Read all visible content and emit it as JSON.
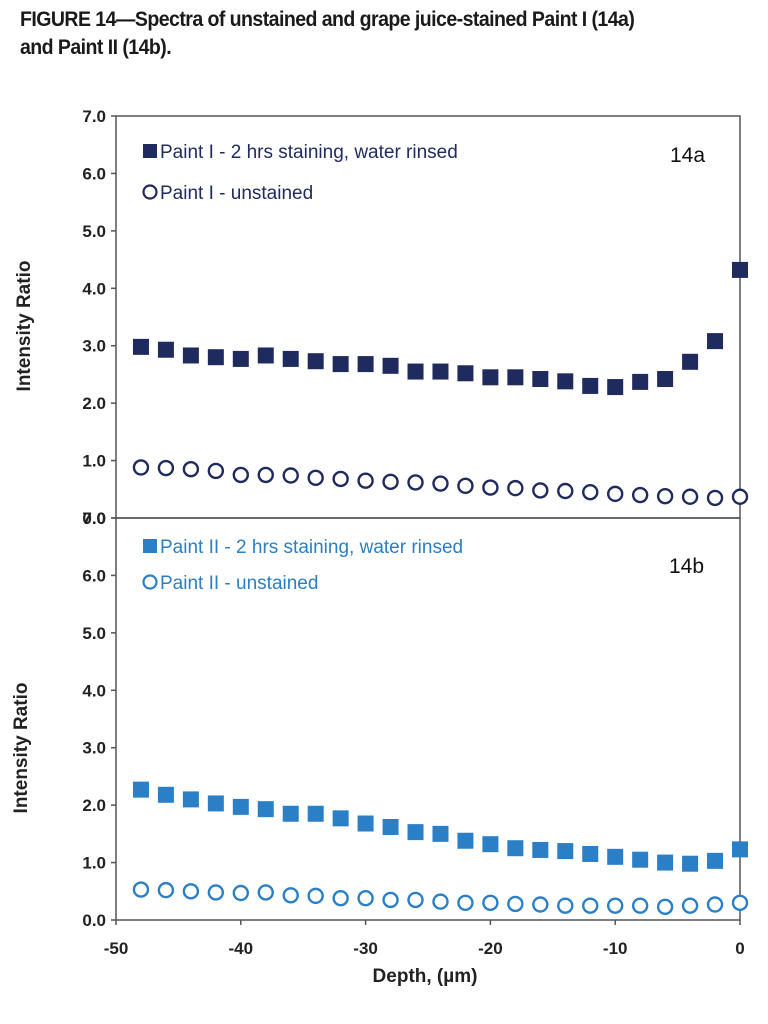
{
  "caption": {
    "line1": "FIGURE 14—Spectra of unstained and grape juice-stained Paint I (14a)",
    "line2": "and Paint II (14b)."
  },
  "colors": {
    "paint1": "#1f2a5e",
    "paint2": "#2a7fc6",
    "axis": "#555555"
  },
  "chart_data": [
    {
      "type": "scatter",
      "panel_label": "14a",
      "title": "",
      "xlabel": "",
      "ylabel": "Intensity Ratio",
      "xlim": [
        -50,
        0
      ],
      "ylim": [
        0,
        7
      ],
      "y_ticks": [
        "0.0",
        "1.0",
        "2.0",
        "3.0",
        "4.0",
        "5.0",
        "6.0",
        "7.0"
      ],
      "grid": false,
      "legend_position": "top-left",
      "x": [
        -48,
        -46,
        -44,
        -42,
        -40,
        -38,
        -36,
        -34,
        -32,
        -30,
        -28,
        -26,
        -24,
        -22,
        -20,
        -18,
        -16,
        -14,
        -12,
        -10,
        -8,
        -6,
        -4,
        -2,
        0
      ],
      "series": [
        {
          "name": "Paint I - 2 hrs staining, water rinsed",
          "marker": "filled-square",
          "color": "#1f2a5e",
          "values": [
            2.98,
            2.93,
            2.83,
            2.8,
            2.77,
            2.83,
            2.77,
            2.73,
            2.68,
            2.68,
            2.65,
            2.55,
            2.55,
            2.52,
            2.45,
            2.45,
            2.42,
            2.38,
            2.3,
            2.28,
            2.37,
            2.42,
            2.72,
            3.08,
            4.32
          ]
        },
        {
          "name": "Paint I - unstained",
          "marker": "open-circle",
          "color": "#1f2a5e",
          "values": [
            0.88,
            0.87,
            0.85,
            0.82,
            0.75,
            0.75,
            0.74,
            0.7,
            0.68,
            0.65,
            0.63,
            0.62,
            0.6,
            0.56,
            0.53,
            0.52,
            0.48,
            0.47,
            0.45,
            0.42,
            0.4,
            0.38,
            0.37,
            0.35,
            0.37
          ]
        }
      ]
    },
    {
      "type": "scatter",
      "panel_label": "14b",
      "title": "",
      "xlabel": "Depth, (µm)",
      "ylabel": "Intensity Ratio",
      "xlim": [
        -50,
        0
      ],
      "ylim": [
        0,
        7
      ],
      "x_ticks": [
        "-50",
        "-40",
        "-30",
        "-20",
        "-10",
        "0"
      ],
      "y_ticks": [
        "0.0",
        "1.0",
        "2.0",
        "3.0",
        "4.0",
        "5.0",
        "6.0",
        "7.0"
      ],
      "grid": false,
      "legend_position": "top-left",
      "x": [
        -48,
        -46,
        -44,
        -42,
        -40,
        -38,
        -36,
        -34,
        -32,
        -30,
        -28,
        -26,
        -24,
        -22,
        -20,
        -18,
        -16,
        -14,
        -12,
        -10,
        -8,
        -6,
        -4,
        -2,
        0
      ],
      "series": [
        {
          "name": "Paint II - 2 hrs staining, water rinsed",
          "marker": "filled-square",
          "color": "#2a7fc6",
          "values": [
            2.27,
            2.18,
            2.1,
            2.03,
            1.97,
            1.93,
            1.85,
            1.85,
            1.77,
            1.68,
            1.62,
            1.53,
            1.5,
            1.38,
            1.32,
            1.25,
            1.22,
            1.2,
            1.15,
            1.1,
            1.05,
            1.0,
            0.98,
            1.03,
            1.23
          ]
        },
        {
          "name": "Paint II - unstained",
          "marker": "open-circle",
          "color": "#2a7fc6",
          "values": [
            0.53,
            0.52,
            0.5,
            0.48,
            0.47,
            0.48,
            0.43,
            0.42,
            0.38,
            0.38,
            0.35,
            0.35,
            0.32,
            0.3,
            0.3,
            0.28,
            0.27,
            0.25,
            0.25,
            0.25,
            0.25,
            0.23,
            0.25,
            0.27,
            0.3
          ]
        }
      ]
    }
  ]
}
